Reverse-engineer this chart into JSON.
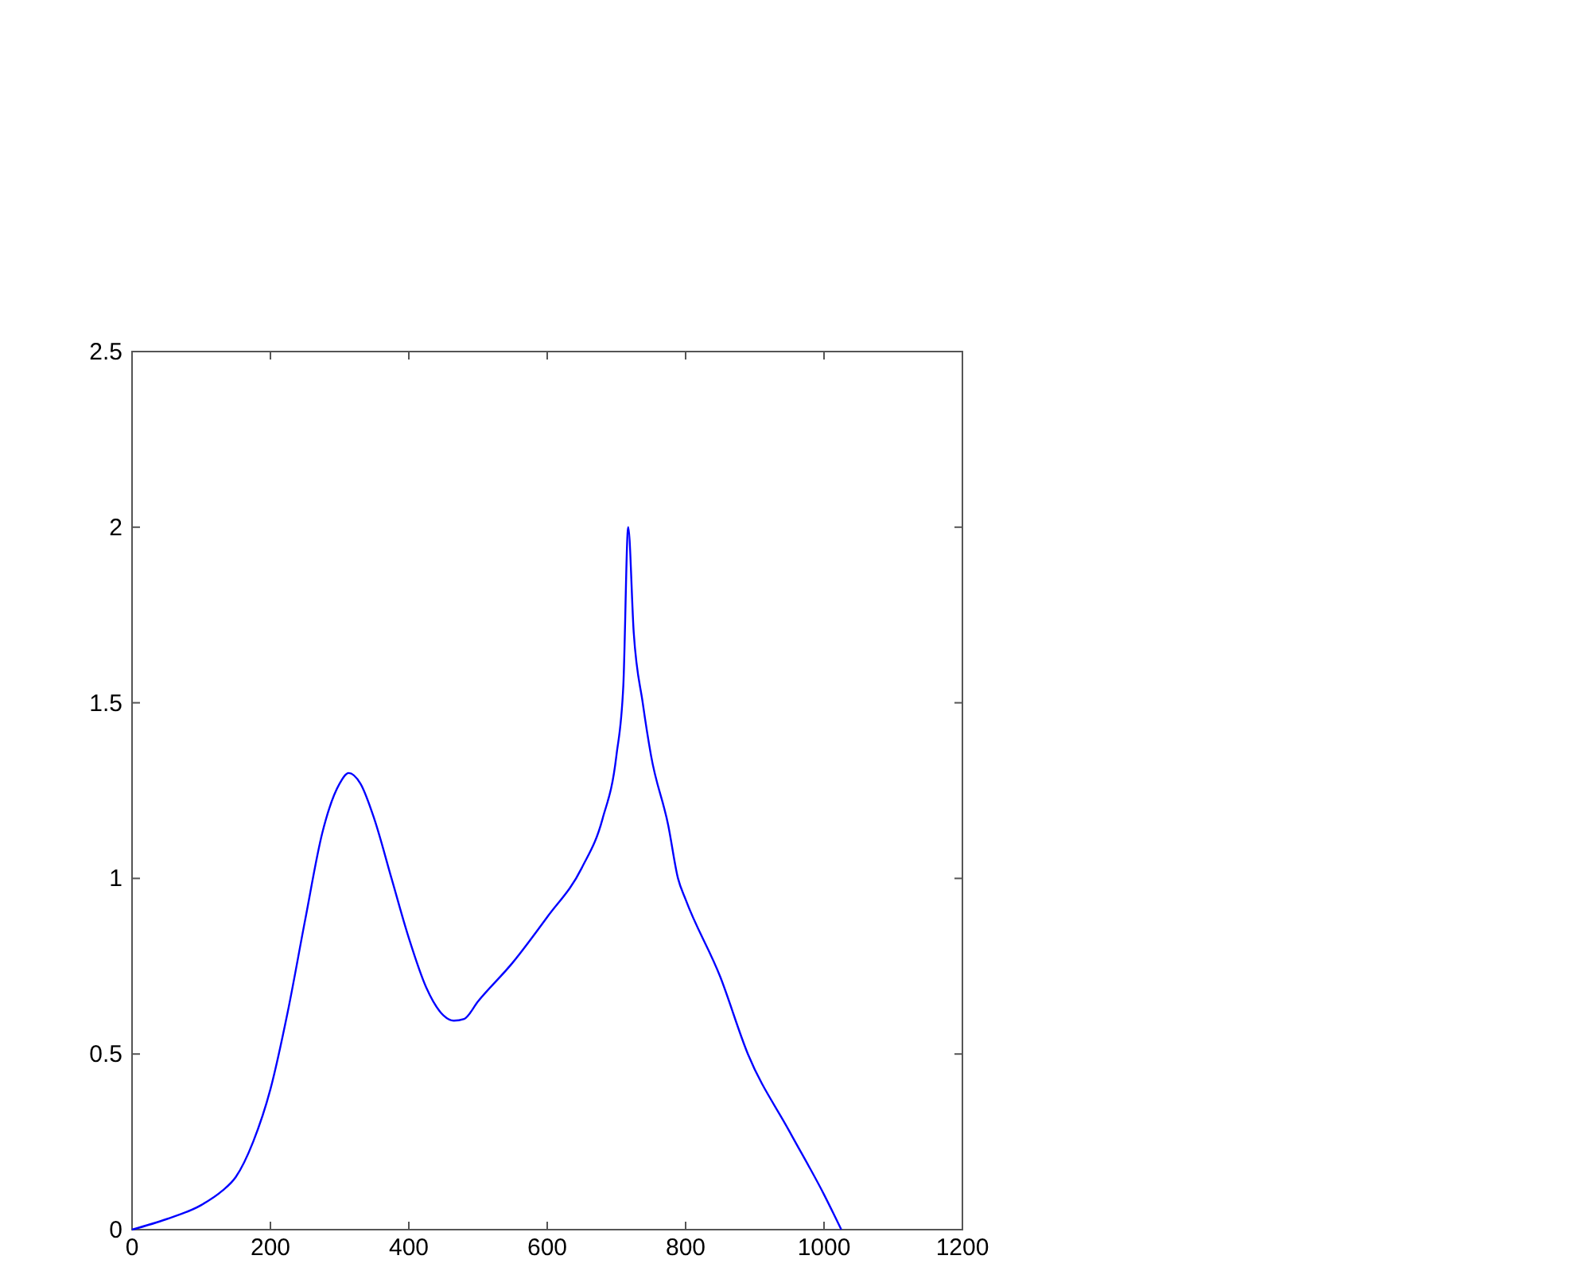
{
  "chart_data": {
    "type": "line",
    "x": [
      0,
      50,
      100,
      130,
      150,
      175,
      200,
      225,
      250,
      275,
      300,
      313,
      330,
      350,
      375,
      400,
      425,
      450,
      465,
      480,
      500,
      550,
      600,
      650,
      680,
      700,
      710,
      717,
      725,
      738,
      750,
      775,
      789,
      800,
      850,
      890,
      950,
      1000,
      1025
    ],
    "series": [
      {
        "color": "#0000ff",
        "values": [
          0,
          0.03,
          0.07,
          0.11,
          0.15,
          0.25,
          0.4,
          0.62,
          0.88,
          1.13,
          1.27,
          1.3,
          1.27,
          1.17,
          1.0,
          0.83,
          0.69,
          0.61,
          0.595,
          0.6,
          0.65,
          0.76,
          0.89,
          1.03,
          1.17,
          1.35,
          1.55,
          2.0,
          1.7,
          1.5,
          1.35,
          1.15,
          1.0,
          0.94,
          0.72,
          0.5,
          0.28,
          0.1,
          0
        ]
      }
    ],
    "xlim": [
      0,
      1200
    ],
    "xticks": [
      0,
      200,
      400,
      600,
      800,
      1000,
      1200
    ],
    "ylim": [
      0,
      2.5
    ],
    "yticks": [
      0,
      0.5,
      1,
      1.5,
      2,
      2.5
    ],
    "marker": "none",
    "line_style": "solid"
  }
}
